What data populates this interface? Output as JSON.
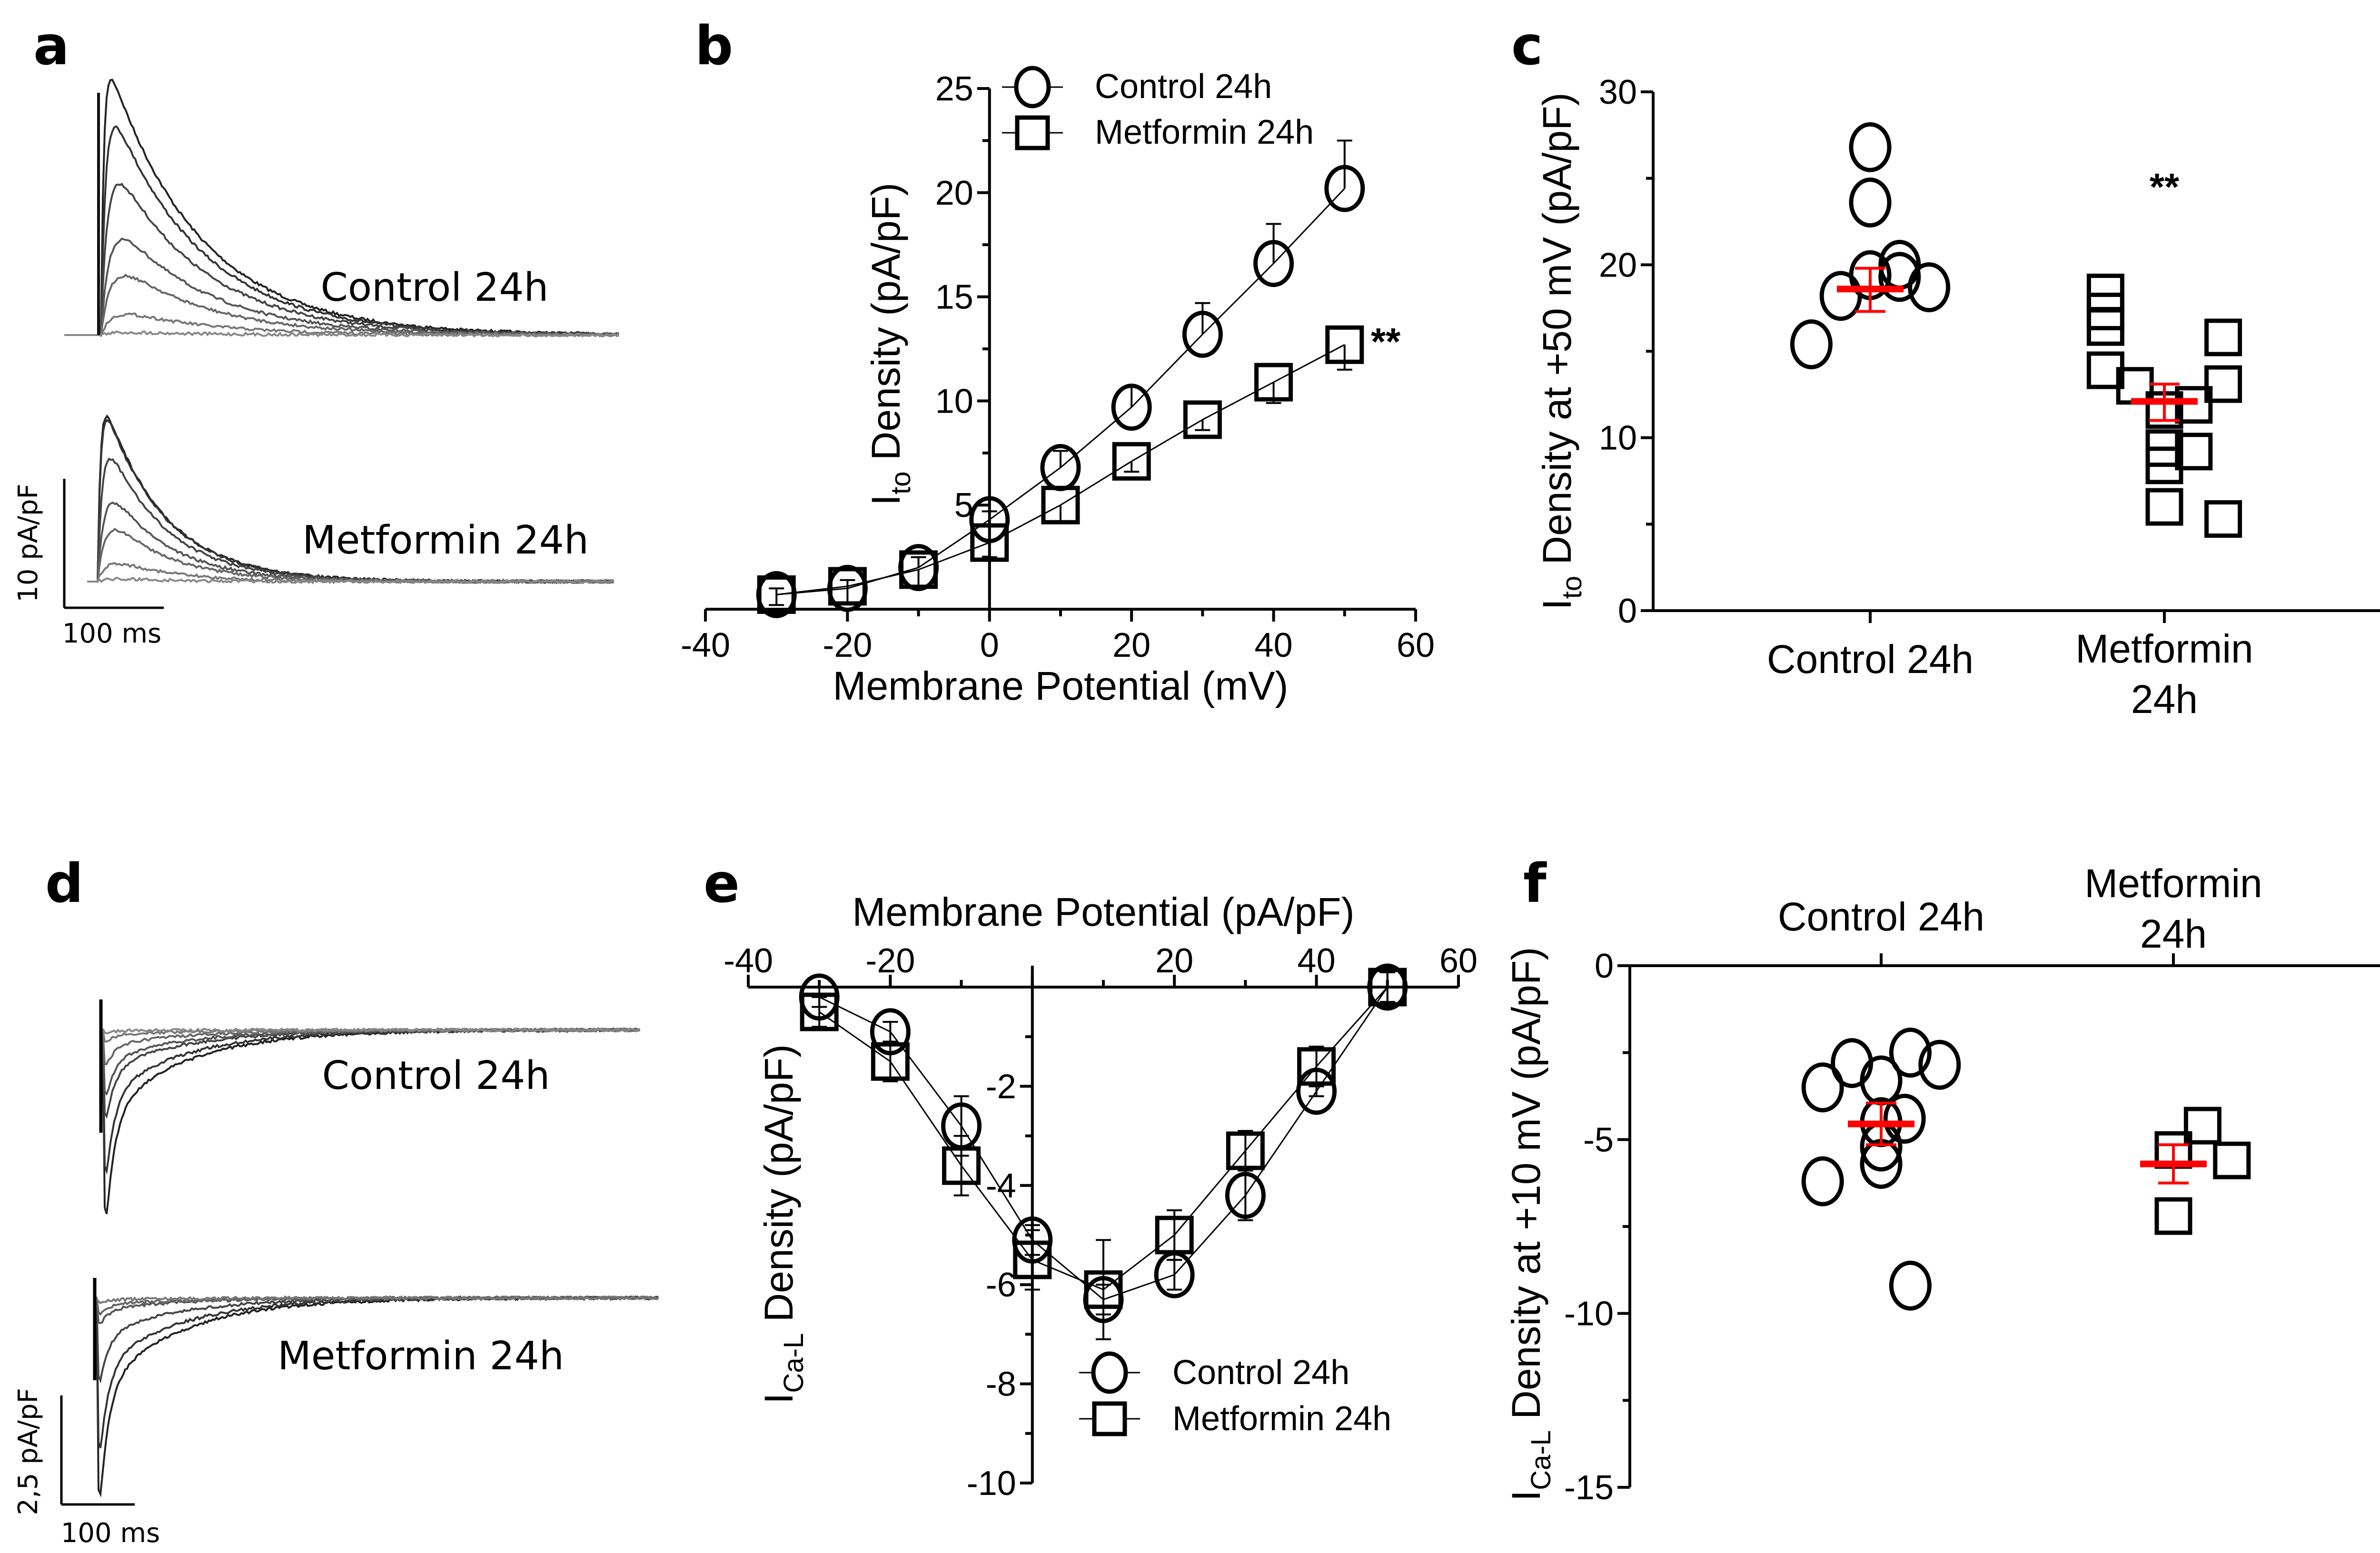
{
  "panels": {
    "a": "a",
    "b": "b",
    "c": "c",
    "d": "d",
    "e": "e",
    "f": "f"
  },
  "chart_data": [
    {
      "panel": "a",
      "type": "line",
      "description_labels": {
        "control": "Control 24h",
        "metformin": "Metformin 24h"
      },
      "scale_bar": {
        "y_label": "10 pA/pF",
        "x_label": "100 ms",
        "y_value": 10,
        "x_value_ms": 100
      },
      "control_peaks": [
        19.8,
        16.1,
        11.7,
        7.4,
        4.6,
        1.6,
        0.2
      ],
      "metformin_peaks": [
        12.8,
        12.5,
        9.5,
        6.1,
        4.0,
        1.4,
        0.2
      ],
      "control_tau_ms": 90,
      "metformin_tau_ms": 60
    },
    {
      "panel": "b",
      "type": "line",
      "xlabel": "Membrane Potential (mV)",
      "ylabel": {
        "main": "I",
        "sub": "to",
        "rest": " Density (pA/pF)"
      },
      "xlim": [
        -40,
        60
      ],
      "ylim": [
        0,
        25
      ],
      "xticks": [
        -40,
        -20,
        0,
        20,
        40,
        60
      ],
      "xtick_labels": [
        "-40",
        "-20",
        "0",
        "20",
        "40",
        "60"
      ],
      "yticks": [
        5,
        10,
        15,
        20,
        25
      ],
      "ytick_labels": [
        "5",
        "10",
        "15",
        "20",
        "25"
      ],
      "x": [
        -30,
        -20,
        -10,
        0,
        10,
        20,
        30,
        40,
        50
      ],
      "series": [
        {
          "name": "Control 24h",
          "marker": "circle",
          "values": [
            0.7,
            1.0,
            2.0,
            4.3,
            6.8,
            9.7,
            13.2,
            16.6,
            20.2
          ],
          "sem": [
            0.3,
            0.4,
            0.5,
            0.4,
            0.8,
            1.0,
            1.5,
            1.9,
            2.3
          ],
          "err_dir": "up"
        },
        {
          "name": "Metformin 24h",
          "marker": "square",
          "values": [
            0.7,
            1.1,
            1.9,
            3.2,
            5.0,
            7.1,
            9.1,
            10.9,
            12.7
          ],
          "sem": [
            0.5,
            0.8,
            0.9,
            0.7,
            0.8,
            0.5,
            0.5,
            1.0,
            1.2
          ],
          "err_dir": "down"
        }
      ],
      "annotation": "**",
      "legend": "top"
    },
    {
      "panel": "c",
      "type": "scatter",
      "ylabel": {
        "main": "I",
        "sub": "to",
        "rest": " Density at +50 mV (pA/pF)"
      },
      "ylim": [
        0,
        30
      ],
      "yticks": [
        0,
        10,
        20,
        30
      ],
      "ytick_labels": [
        "0",
        "10",
        "20",
        "30"
      ],
      "categories": [
        "Control 24h",
        "Metformin|24h"
      ],
      "groups": [
        {
          "name": "Control 24h",
          "marker": "circle",
          "mean": 18.6,
          "sem_range": [
            17.3,
            19.8
          ],
          "points": [
            [
              0,
              26.8
            ],
            [
              0,
              23.6
            ],
            [
              0,
              19.4
            ],
            [
              0.1,
              20.0
            ],
            [
              0.1,
              19.3
            ],
            [
              -0.1,
              18.2
            ],
            [
              0.2,
              18.7
            ],
            [
              -0.2,
              15.4
            ]
          ]
        },
        {
          "name": "Metformin 24h",
          "marker": "square",
          "mean": 12.1,
          "sem_range": [
            11.0,
            13.1
          ],
          "points": [
            [
              -0.2,
              18.4
            ],
            [
              -0.2,
              17.3
            ],
            [
              -0.2,
              16.4
            ],
            [
              -0.2,
              13.9
            ],
            [
              -0.1,
              13.0
            ],
            [
              0,
              11.6
            ],
            [
              0,
              9.4
            ],
            [
              0,
              8.4
            ],
            [
              0,
              6.0
            ],
            [
              0.1,
              11.9
            ],
            [
              0.1,
              9.2
            ],
            [
              0.2,
              15.8
            ],
            [
              0.2,
              13.1
            ],
            [
              0.2,
              5.3
            ]
          ]
        }
      ],
      "annotation": "**",
      "mean_color": "#ff0000"
    },
    {
      "panel": "d",
      "type": "line",
      "description_labels": {
        "control": "Control 24h",
        "metformin": "Metformin 24h"
      },
      "scale_bar": {
        "y_label": "2,5 pA/pF",
        "x_label": "100 ms",
        "y_value": 2.5,
        "x_value_ms": 100
      },
      "control_peaks": [
        4.3,
        3.3,
        2.0,
        1.5,
        0.8,
        0.25,
        0.05
      ],
      "metformin_peaks": [
        4.6,
        3.5,
        1.9,
        0.6,
        0.36,
        0.1
      ]
    },
    {
      "panel": "e",
      "type": "line",
      "xlabel": "Membrane Potential (pA/pF)",
      "ylabel": {
        "main": "I",
        "sub": "Ca-L",
        "rest": " Density (pA/pF)"
      },
      "xlim": [
        -40,
        60
      ],
      "ylim": [
        -10,
        0
      ],
      "xticks": [
        -40,
        -20,
        20,
        40,
        60
      ],
      "xtick_labels": [
        "-40",
        "-20",
        "20",
        "40",
        "60"
      ],
      "yticks": [
        -2,
        -4,
        -6,
        -8,
        -10
      ],
      "ytick_labels": [
        "-2",
        "-4",
        "-6",
        "-8",
        "-10"
      ],
      "x": [
        -30,
        -20,
        -10,
        0,
        10,
        20,
        30,
        40,
        50
      ],
      "series": [
        {
          "name": "Control 24h",
          "marker": "circle",
          "values": [
            -0.2,
            -0.9,
            -2.8,
            -5.1,
            -6.3,
            -5.8,
            -4.2,
            -2.1,
            0.0
          ],
          "sem": [
            0.2,
            0.2,
            0.6,
            0.3,
            0.3,
            0.3,
            0.5,
            0.1,
            0.3
          ]
        },
        {
          "name": "Metformin 24h",
          "marker": "square",
          "values": [
            -0.5,
            -1.5,
            -3.6,
            -5.5,
            -6.1,
            -5.0,
            -3.3,
            -1.6,
            0.0
          ],
          "sem": [
            0.3,
            0.4,
            0.6,
            0.6,
            1.0,
            0.5,
            0.4,
            0.4,
            0.3
          ]
        }
      ],
      "legend": "bottom-right"
    },
    {
      "panel": "f",
      "type": "scatter",
      "ylabel": {
        "main": "I",
        "sub": "Ca-L",
        "rest": " Density at +10 mV (pA/pF)"
      },
      "ylim": [
        -15,
        0
      ],
      "yticks": [
        0,
        -5,
        -10,
        -15
      ],
      "ytick_labels": [
        "0",
        "-5",
        "-10",
        "-15"
      ],
      "categories": [
        "Control 24h",
        "Metformin|24h"
      ],
      "groups": [
        {
          "name": "Control 24h",
          "marker": "circle",
          "mean": -4.55,
          "sem_range": [
            -5.15,
            -3.95
          ],
          "points": [
            [
              -0.1,
              -2.8
            ],
            [
              0.1,
              -2.5
            ],
            [
              0.2,
              -2.85
            ],
            [
              -0.2,
              -3.5
            ],
            [
              0,
              -3.3
            ],
            [
              0.08,
              -4.4
            ],
            [
              0,
              -4.5
            ],
            [
              0,
              -5.2
            ],
            [
              0,
              -5.7
            ],
            [
              -0.2,
              -6.2
            ],
            [
              0.1,
              -9.2
            ]
          ]
        },
        {
          "name": "Metformin 24h",
          "marker": "square",
          "mean": -5.7,
          "sem_range": [
            -6.25,
            -5.15
          ],
          "points": [
            [
              0,
              -5.3
            ],
            [
              0.1,
              -4.6
            ],
            [
              0.2,
              -5.6
            ],
            [
              0,
              -7.2
            ]
          ]
        }
      ],
      "mean_color": "#ff0000"
    }
  ]
}
